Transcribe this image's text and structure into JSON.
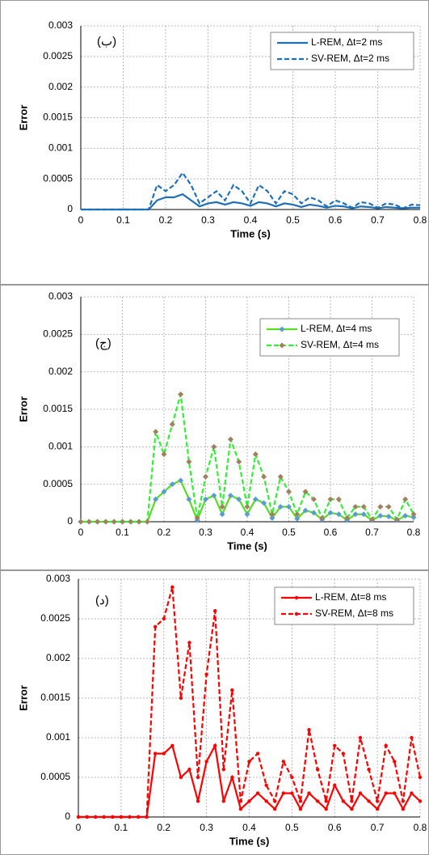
{
  "chart_data": [
    {
      "type": "line",
      "annotation": "(ب)",
      "xlabel": "Time (s)",
      "ylabel": "Error",
      "x": [
        0,
        0.02,
        0.04,
        0.06,
        0.08,
        0.1,
        0.12,
        0.14,
        0.16,
        0.18,
        0.2,
        0.22,
        0.24,
        0.26,
        0.28,
        0.3,
        0.32,
        0.34,
        0.36,
        0.38,
        0.4,
        0.42,
        0.44,
        0.46,
        0.48,
        0.5,
        0.52,
        0.54,
        0.56,
        0.58,
        0.6,
        0.62,
        0.64,
        0.66,
        0.68,
        0.7,
        0.72,
        0.74,
        0.76,
        0.78,
        0.8
      ],
      "series": [
        {
          "name": "L-REM, Δt=2 ms",
          "color": "#1f6fb5",
          "line_style": "solid",
          "values": [
            0,
            0,
            0,
            0,
            0,
            0,
            0,
            0,
            0,
            0.00015,
            0.0002,
            0.0002,
            0.00025,
            0.00015,
            5e-05,
            0.0001,
            0.00012,
            8e-05,
            0.00012,
            0.0001,
            6e-05,
            0.00012,
            0.0001,
            5e-05,
            0.0001,
            8e-05,
            4e-05,
            8e-05,
            6e-05,
            3e-05,
            6e-05,
            5e-05,
            2e-05,
            5e-05,
            4e-05,
            2e-05,
            4e-05,
            3e-05,
            2e-05,
            3e-05,
            3e-05
          ]
        },
        {
          "name": "SV-REM, Δt=2 ms",
          "color": "#1f6fb5",
          "line_style": "dashed",
          "values": [
            0,
            0,
            0,
            0,
            0,
            0,
            0,
            0,
            0,
            0.0004,
            0.0003,
            0.0004,
            0.0006,
            0.0004,
            0.0001,
            0.0002,
            0.0003,
            0.00015,
            0.0004,
            0.0003,
            0.0001,
            0.0004,
            0.0003,
            0.0001,
            0.0003,
            0.00025,
            0.0001,
            0.0002,
            0.00015,
            5e-05,
            0.00015,
            0.0001,
            3e-05,
            0.00012,
            0.0001,
            3e-05,
            0.0001,
            8e-05,
            2e-05,
            8e-05,
            7e-05
          ]
        }
      ],
      "xlim": [
        0,
        0.8
      ],
      "ylim": [
        0,
        0.003
      ],
      "xticks": [
        0,
        0.1,
        0.2,
        0.3,
        0.4,
        0.5,
        0.6,
        0.7,
        0.8
      ],
      "yticks": [
        0,
        0.0005,
        0.001,
        0.0015,
        0.002,
        0.0025,
        0.003
      ],
      "grid": true
    },
    {
      "type": "line",
      "annotation": "(ج)",
      "xlabel": "Time (s)",
      "ylabel": "Error",
      "x": [
        0,
        0.02,
        0.04,
        0.06,
        0.08,
        0.1,
        0.12,
        0.14,
        0.16,
        0.18,
        0.2,
        0.22,
        0.24,
        0.26,
        0.28,
        0.3,
        0.32,
        0.34,
        0.36,
        0.38,
        0.4,
        0.42,
        0.44,
        0.46,
        0.48,
        0.5,
        0.52,
        0.54,
        0.56,
        0.58,
        0.6,
        0.62,
        0.64,
        0.66,
        0.68,
        0.7,
        0.72,
        0.74,
        0.76,
        0.78,
        0.8
      ],
      "series": [
        {
          "name": "L-REM, Δt=4 ms",
          "color": "#55dd22",
          "line_style": "solid",
          "marker": "diamond",
          "marker_color": "#5b9bd5",
          "values": [
            0,
            0,
            0,
            0,
            0,
            0,
            0,
            0,
            0,
            0.0003,
            0.0004,
            0.0005,
            0.00055,
            0.0003,
            2e-05,
            0.0003,
            0.00035,
            0.0001,
            0.00035,
            0.0003,
            0.0001,
            0.0003,
            0.00025,
            5e-05,
            0.0002,
            0.0002,
            4e-05,
            0.00015,
            0.00012,
            3e-05,
            0.00012,
            0.0001,
            2e-05,
            0.0001,
            0.0001,
            2e-05,
            8e-05,
            7e-05,
            2e-05,
            8e-05,
            6e-05
          ]
        },
        {
          "name": "SV-REM, Δt=4 ms",
          "color": "#33ee33",
          "line_style": "dashed",
          "marker": "diamond",
          "marker_color": "#a08060",
          "values": [
            0,
            0,
            0,
            0,
            0,
            0,
            0,
            0,
            0,
            0.0012,
            0.0009,
            0.0013,
            0.0017,
            0.0008,
            5e-05,
            0.0006,
            0.001,
            0.0002,
            0.0011,
            0.0008,
            0.0002,
            0.0009,
            0.0006,
            0.0001,
            0.0006,
            0.0004,
            0.0001,
            0.0004,
            0.0003,
            5e-05,
            0.0003,
            0.0003,
            5e-05,
            0.0002,
            0.0002,
            3e-05,
            0.0002,
            0.0002,
            3e-05,
            0.0003,
            0.0001
          ]
        }
      ],
      "xlim": [
        0,
        0.8
      ],
      "ylim": [
        0,
        0.003
      ],
      "xticks": [
        0,
        0.1,
        0.2,
        0.3,
        0.4,
        0.5,
        0.6,
        0.7,
        0.8
      ],
      "yticks": [
        0,
        0.0005,
        0.001,
        0.0015,
        0.002,
        0.0025,
        0.003
      ],
      "grid": true
    },
    {
      "type": "line",
      "annotation": "(د)",
      "xlabel": "Time (s)",
      "ylabel": "Error",
      "x": [
        0,
        0.02,
        0.04,
        0.06,
        0.08,
        0.1,
        0.12,
        0.14,
        0.16,
        0.18,
        0.2,
        0.22,
        0.24,
        0.26,
        0.28,
        0.3,
        0.32,
        0.34,
        0.36,
        0.38,
        0.4,
        0.42,
        0.44,
        0.46,
        0.48,
        0.5,
        0.52,
        0.54,
        0.56,
        0.58,
        0.6,
        0.62,
        0.64,
        0.66,
        0.68,
        0.7,
        0.72,
        0.74,
        0.76,
        0.78,
        0.8
      ],
      "series": [
        {
          "name": "L-REM, Δt=8 ms",
          "color": "#ff0000",
          "line_style": "solid",
          "marker": "circle",
          "marker_color": "#ff0000",
          "values": [
            0,
            0,
            0,
            0,
            0,
            0,
            0,
            0,
            0,
            0.0008,
            0.0008,
            0.0009,
            0.0005,
            0.0006,
            0.0002,
            0.0007,
            0.0009,
            0.0002,
            0.0005,
            0.0001,
            0.0002,
            0.0003,
            0.0002,
            0.0001,
            0.0003,
            0.0003,
            0.0001,
            0.0003,
            0.0002,
            0.0001,
            0.0004,
            0.0002,
            0.0001,
            0.0003,
            0.0002,
            0.0001,
            0.0003,
            0.0003,
            0.0001,
            0.0003,
            0.0002
          ]
        },
        {
          "name": "SV-REM, Δt=8 ms",
          "color": "#ff0000",
          "line_style": "dashed",
          "marker": "circle",
          "marker_color": "#ff0000",
          "values": [
            0,
            0,
            0,
            0,
            0,
            0,
            0,
            0,
            0,
            0.0024,
            0.0025,
            0.0029,
            0.0015,
            0.0022,
            0.0005,
            0.0018,
            0.0026,
            0.0006,
            0.0016,
            0.0002,
            0.0007,
            0.0008,
            0.0004,
            0.0002,
            0.0007,
            0.0005,
            0.0002,
            0.0011,
            0.0006,
            0.0002,
            0.0009,
            0.0008,
            0.0002,
            0.001,
            0.0006,
            0.0002,
            0.0009,
            0.0007,
            0.0002,
            0.001,
            0.0005
          ]
        }
      ],
      "xlim": [
        0,
        0.8
      ],
      "ylim": [
        0,
        0.003
      ],
      "xticks": [
        0,
        0.1,
        0.2,
        0.3,
        0.4,
        0.5,
        0.6,
        0.7,
        0.8
      ],
      "yticks": [
        0,
        0.0005,
        0.001,
        0.0015,
        0.002,
        0.0025,
        0.003
      ],
      "grid": true
    }
  ]
}
